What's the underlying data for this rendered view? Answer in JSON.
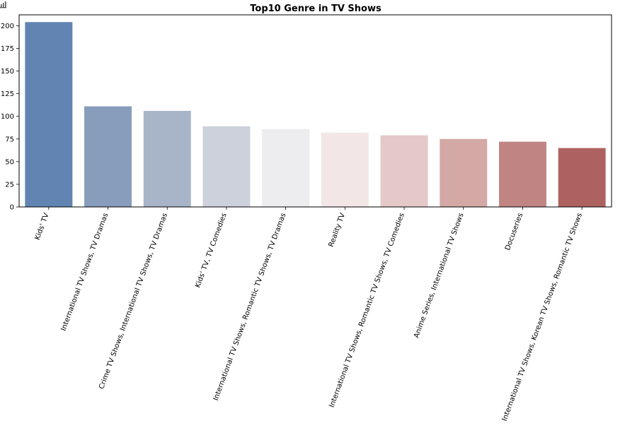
{
  "chart_data": {
    "type": "bar",
    "title": "Top10 Genre in TV Shows",
    "xlabel": "",
    "ylabel": "",
    "categories": [
      "Kids' TV",
      "International TV Shows, TV Dramas",
      "Crime TV Shows, International TV Shows, TV Dramas",
      "Kids' TV, TV Comedies",
      "International TV Shows, Romantic TV Shows, TV Dramas",
      "Reality TV",
      "International TV Shows, Romantic TV Shows, TV Comedies",
      "Anime Series, International TV Shows",
      "Docuseries",
      "International TV Shows, Korean TV Shows, Romantic TV Shows"
    ],
    "values": [
      204,
      111,
      106,
      89,
      86,
      82,
      79,
      75,
      72,
      65
    ],
    "ylim": [
      0,
      212
    ],
    "yticks": [
      0,
      25,
      50,
      75,
      100,
      125,
      150,
      175,
      200
    ],
    "colors": [
      "#6184b2",
      "#889dbc",
      "#a8b4c8",
      "#cdd1dc",
      "#ededef",
      "#f3e6e6",
      "#e5c8c8",
      "#d3a8a5",
      "#c08583",
      "#ae6260"
    ],
    "grid": false,
    "legend": "none"
  },
  "icons": {
    "corner": "bar-chart-icon"
  }
}
